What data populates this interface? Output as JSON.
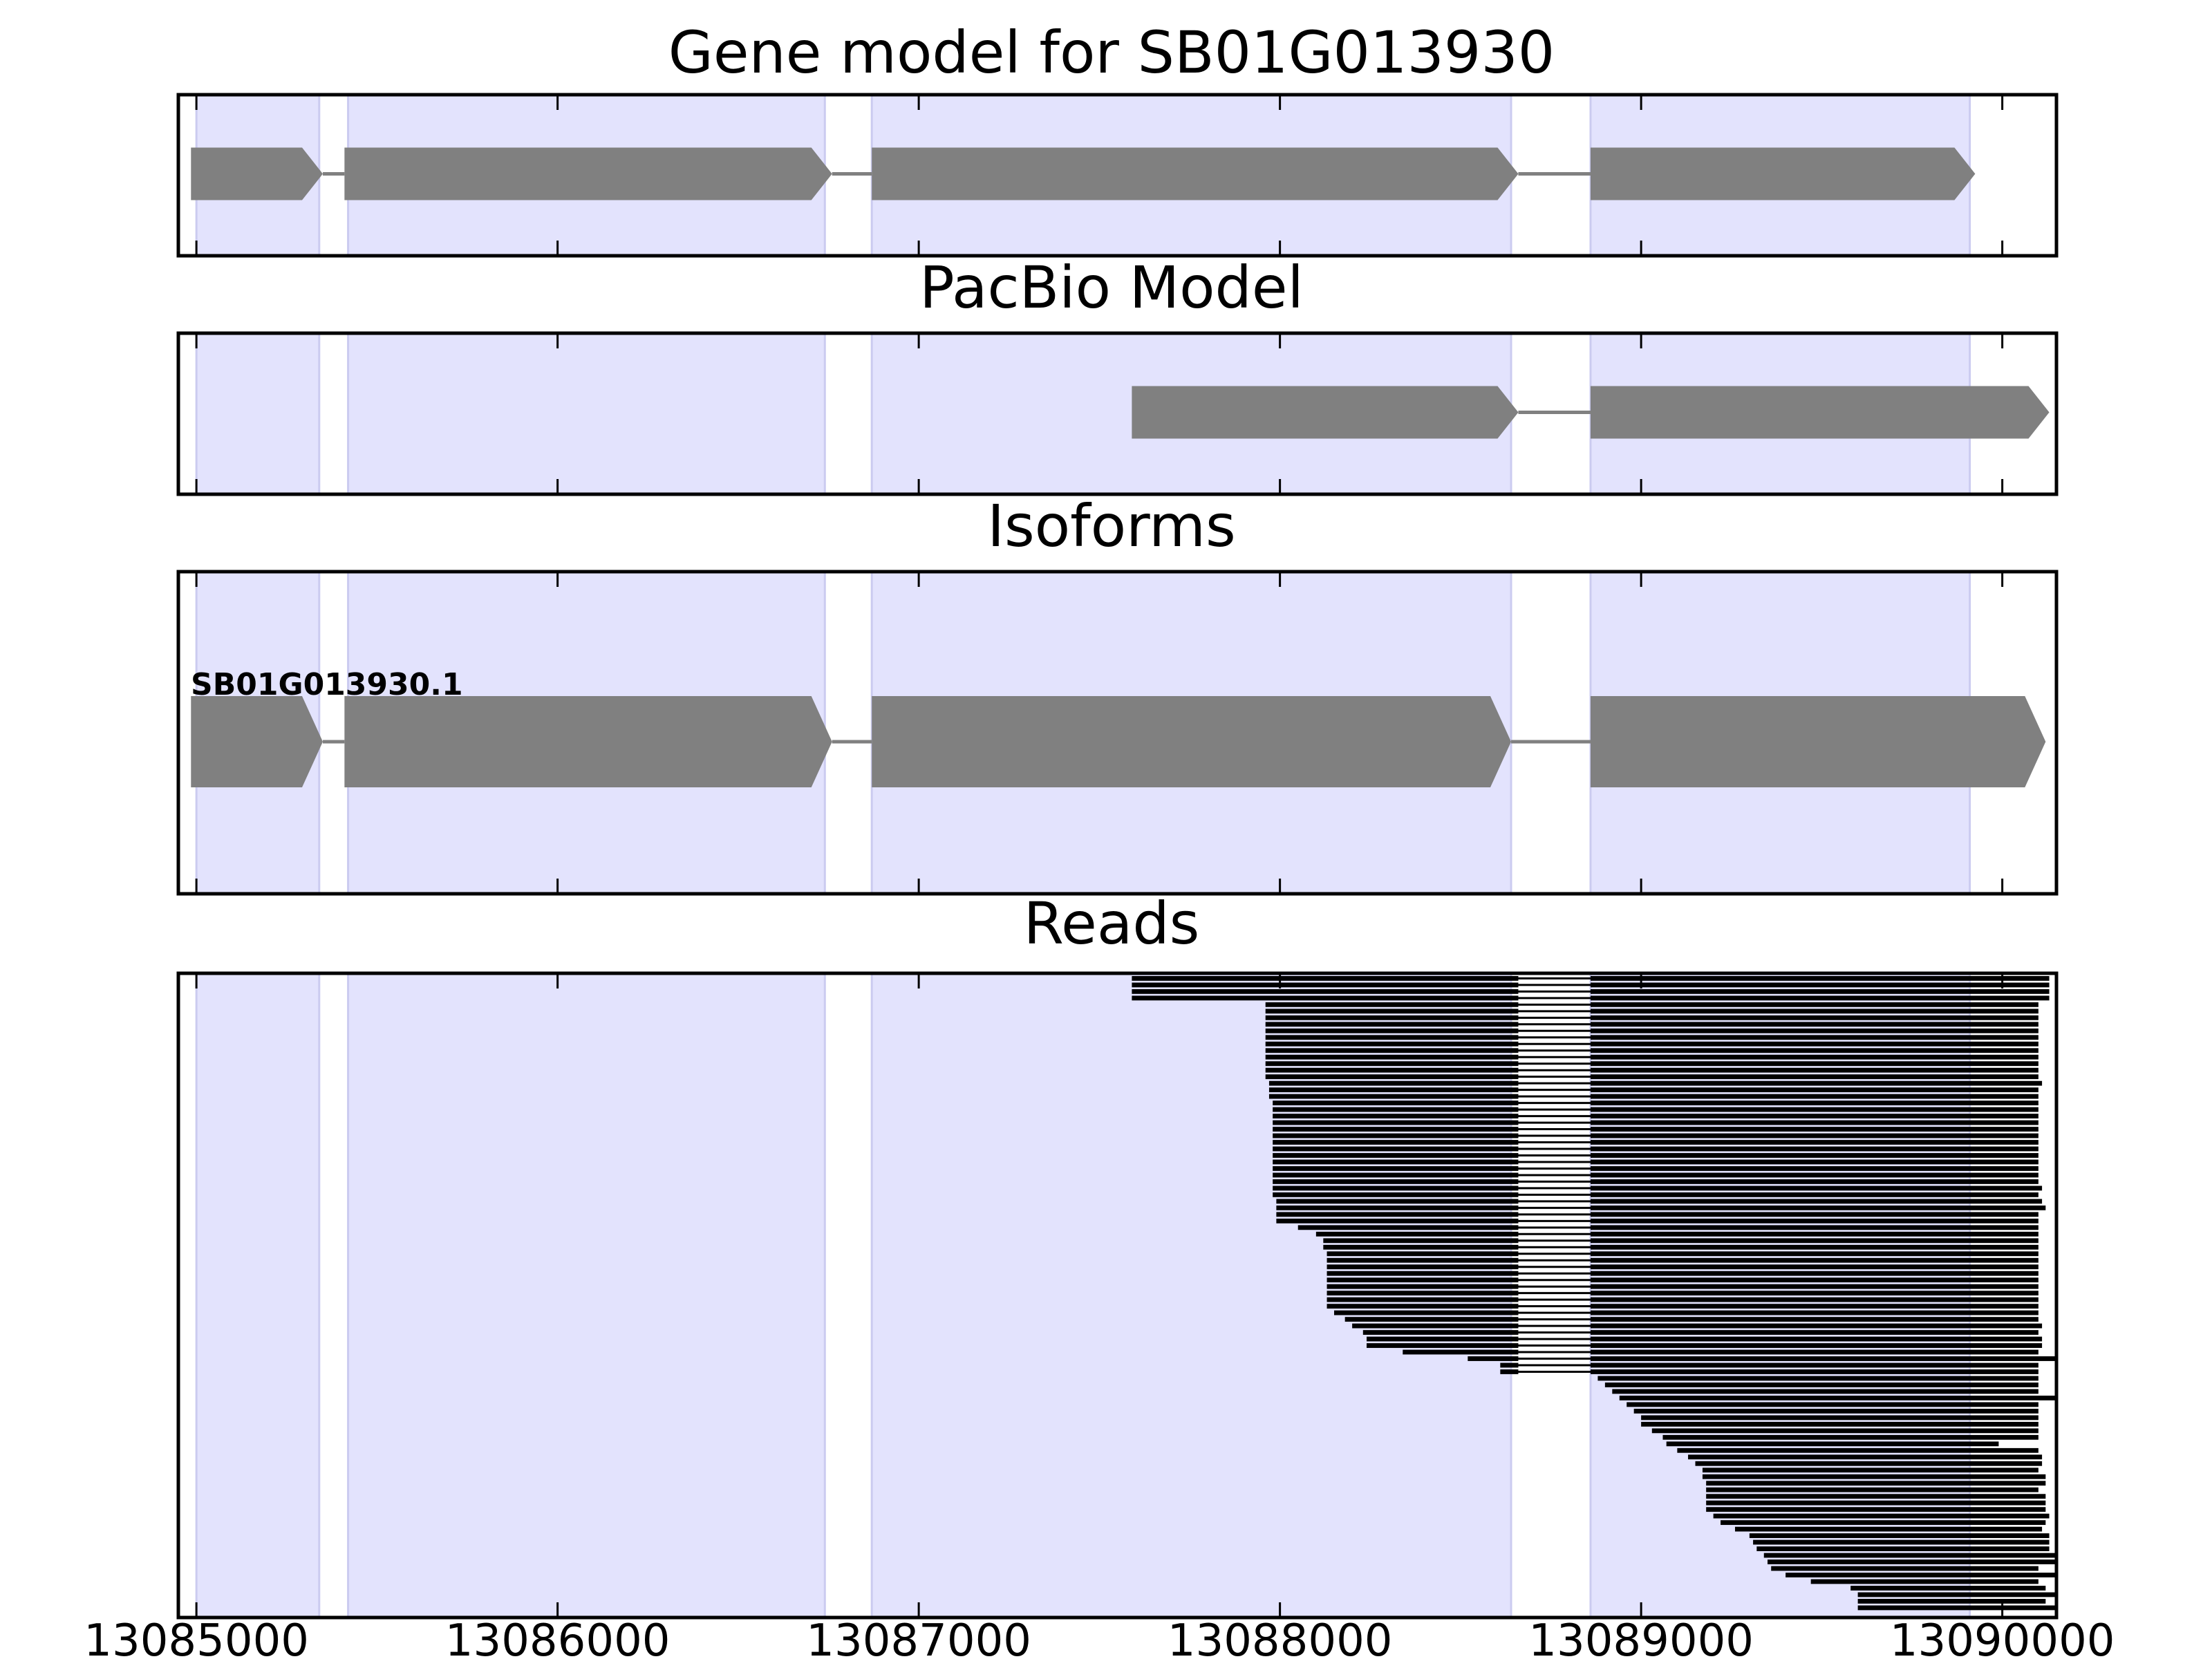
{
  "chart_data": {
    "type": "gene-model-tracks",
    "x_axis": {
      "xlim": [
        13084950,
        13090150
      ],
      "ticks": [
        13085000,
        13086000,
        13087000,
        13088000,
        13089000,
        13090000
      ],
      "tick_labels": [
        "13085000",
        "13086000",
        "13087000",
        "13088000",
        "13089000",
        "13090000"
      ]
    },
    "colors": {
      "exon_shade": "#e3e3fd",
      "exon_shade_edge": "#cbcbf0",
      "feature": "#808080",
      "intron_line": "#808080",
      "read": "#000000",
      "frame": "#000000"
    },
    "shaded_exons": [
      [
        13085000,
        13085340
      ],
      [
        13085420,
        13086740
      ],
      [
        13086870,
        13088640
      ],
      [
        13088860,
        13089910
      ]
    ],
    "panels": [
      {
        "title": "Gene model for SB01G013930",
        "strand": "+",
        "exons": [
          [
            13084985,
            13085350
          ],
          [
            13085410,
            13086760
          ],
          [
            13086870,
            13088660
          ],
          [
            13088860,
            13089925
          ]
        ]
      },
      {
        "title": "PacBio Model",
        "strand": "+",
        "exons": [
          [
            13087590,
            13088660
          ],
          [
            13088860,
            13090130
          ]
        ]
      },
      {
        "title": "Isoforms",
        "isoform_label": "SB01G013930.1",
        "strand": "+",
        "exons": [
          [
            13084985,
            13085350
          ],
          [
            13085410,
            13086760
          ],
          [
            13086870,
            13088640
          ],
          [
            13088860,
            13090120
          ]
        ]
      },
      {
        "title": "Reads",
        "intron": [
          13088660,
          13088860
        ],
        "read_starts": [
          13087590,
          13087590,
          13087590,
          13087590,
          13087960,
          13087960,
          13087960,
          13087960,
          13087960,
          13087960,
          13087960,
          13087960,
          13087960,
          13087960,
          13087960,
          13087960,
          13087970,
          13087970,
          13087970,
          13087980,
          13087980,
          13087980,
          13087980,
          13087980,
          13087980,
          13087980,
          13087980,
          13087980,
          13087980,
          13087980,
          13087980,
          13087980,
          13087980,
          13087980,
          13087990,
          13087990,
          13087990,
          13087990,
          13088050,
          13088100,
          13088120,
          13088120,
          13088130,
          13088130,
          13088130,
          13088130,
          13088130,
          13088130,
          13088130,
          13088130,
          13088130,
          13088150,
          13088180,
          13088200,
          13088230,
          13088240,
          13088240,
          13088340,
          13088520,
          13088610,
          13088610,
          13088880,
          13088900,
          13088920,
          13088940,
          13088960,
          13088980,
          13089000,
          13089000,
          13089030,
          13089060,
          13089070,
          13089100,
          13089130,
          13089150,
          13089170,
          13089170,
          13089180,
          13089180,
          13089180,
          13089180,
          13089180,
          13089200,
          13089220,
          13089260,
          13089300,
          13089310,
          13089320,
          13089340,
          13089350,
          13089360,
          13089400,
          13089470,
          13089580,
          13089600,
          13089600,
          13089600
        ],
        "read_ends": [
          13090130,
          13090130,
          13090130,
          13090130,
          13090100,
          13090100,
          13090100,
          13090100,
          13090100,
          13090100,
          13090100,
          13090100,
          13090100,
          13090100,
          13090100,
          13090100,
          13090110,
          13090100,
          13090100,
          13090100,
          13090100,
          13090100,
          13090100,
          13090100,
          13090100,
          13090100,
          13090100,
          13090100,
          13090100,
          13090100,
          13090100,
          13090100,
          13090110,
          13090100,
          13090110,
          13090120,
          13090100,
          13090100,
          13090100,
          13090100,
          13090100,
          13090100,
          13090100,
          13090100,
          13090100,
          13090100,
          13090100,
          13090100,
          13090100,
          13090100,
          13090100,
          13090100,
          13090100,
          13090110,
          13090100,
          13090110,
          13090110,
          13090100,
          13090150,
          13090100,
          13090100,
          13090100,
          13090100,
          13090100,
          13090150,
          13090100,
          13090100,
          13090100,
          13090100,
          13090100,
          13090100,
          13089990,
          13090100,
          13090110,
          13090110,
          13090100,
          13090120,
          13090120,
          13090100,
          13090120,
          13090120,
          13090120,
          13090130,
          13090120,
          13090110,
          13090130,
          13090130,
          13090130,
          13090150,
          13090150,
          13090100,
          13090150,
          13090100,
          13090120,
          13090150,
          13090120,
          13090150
        ]
      }
    ]
  }
}
